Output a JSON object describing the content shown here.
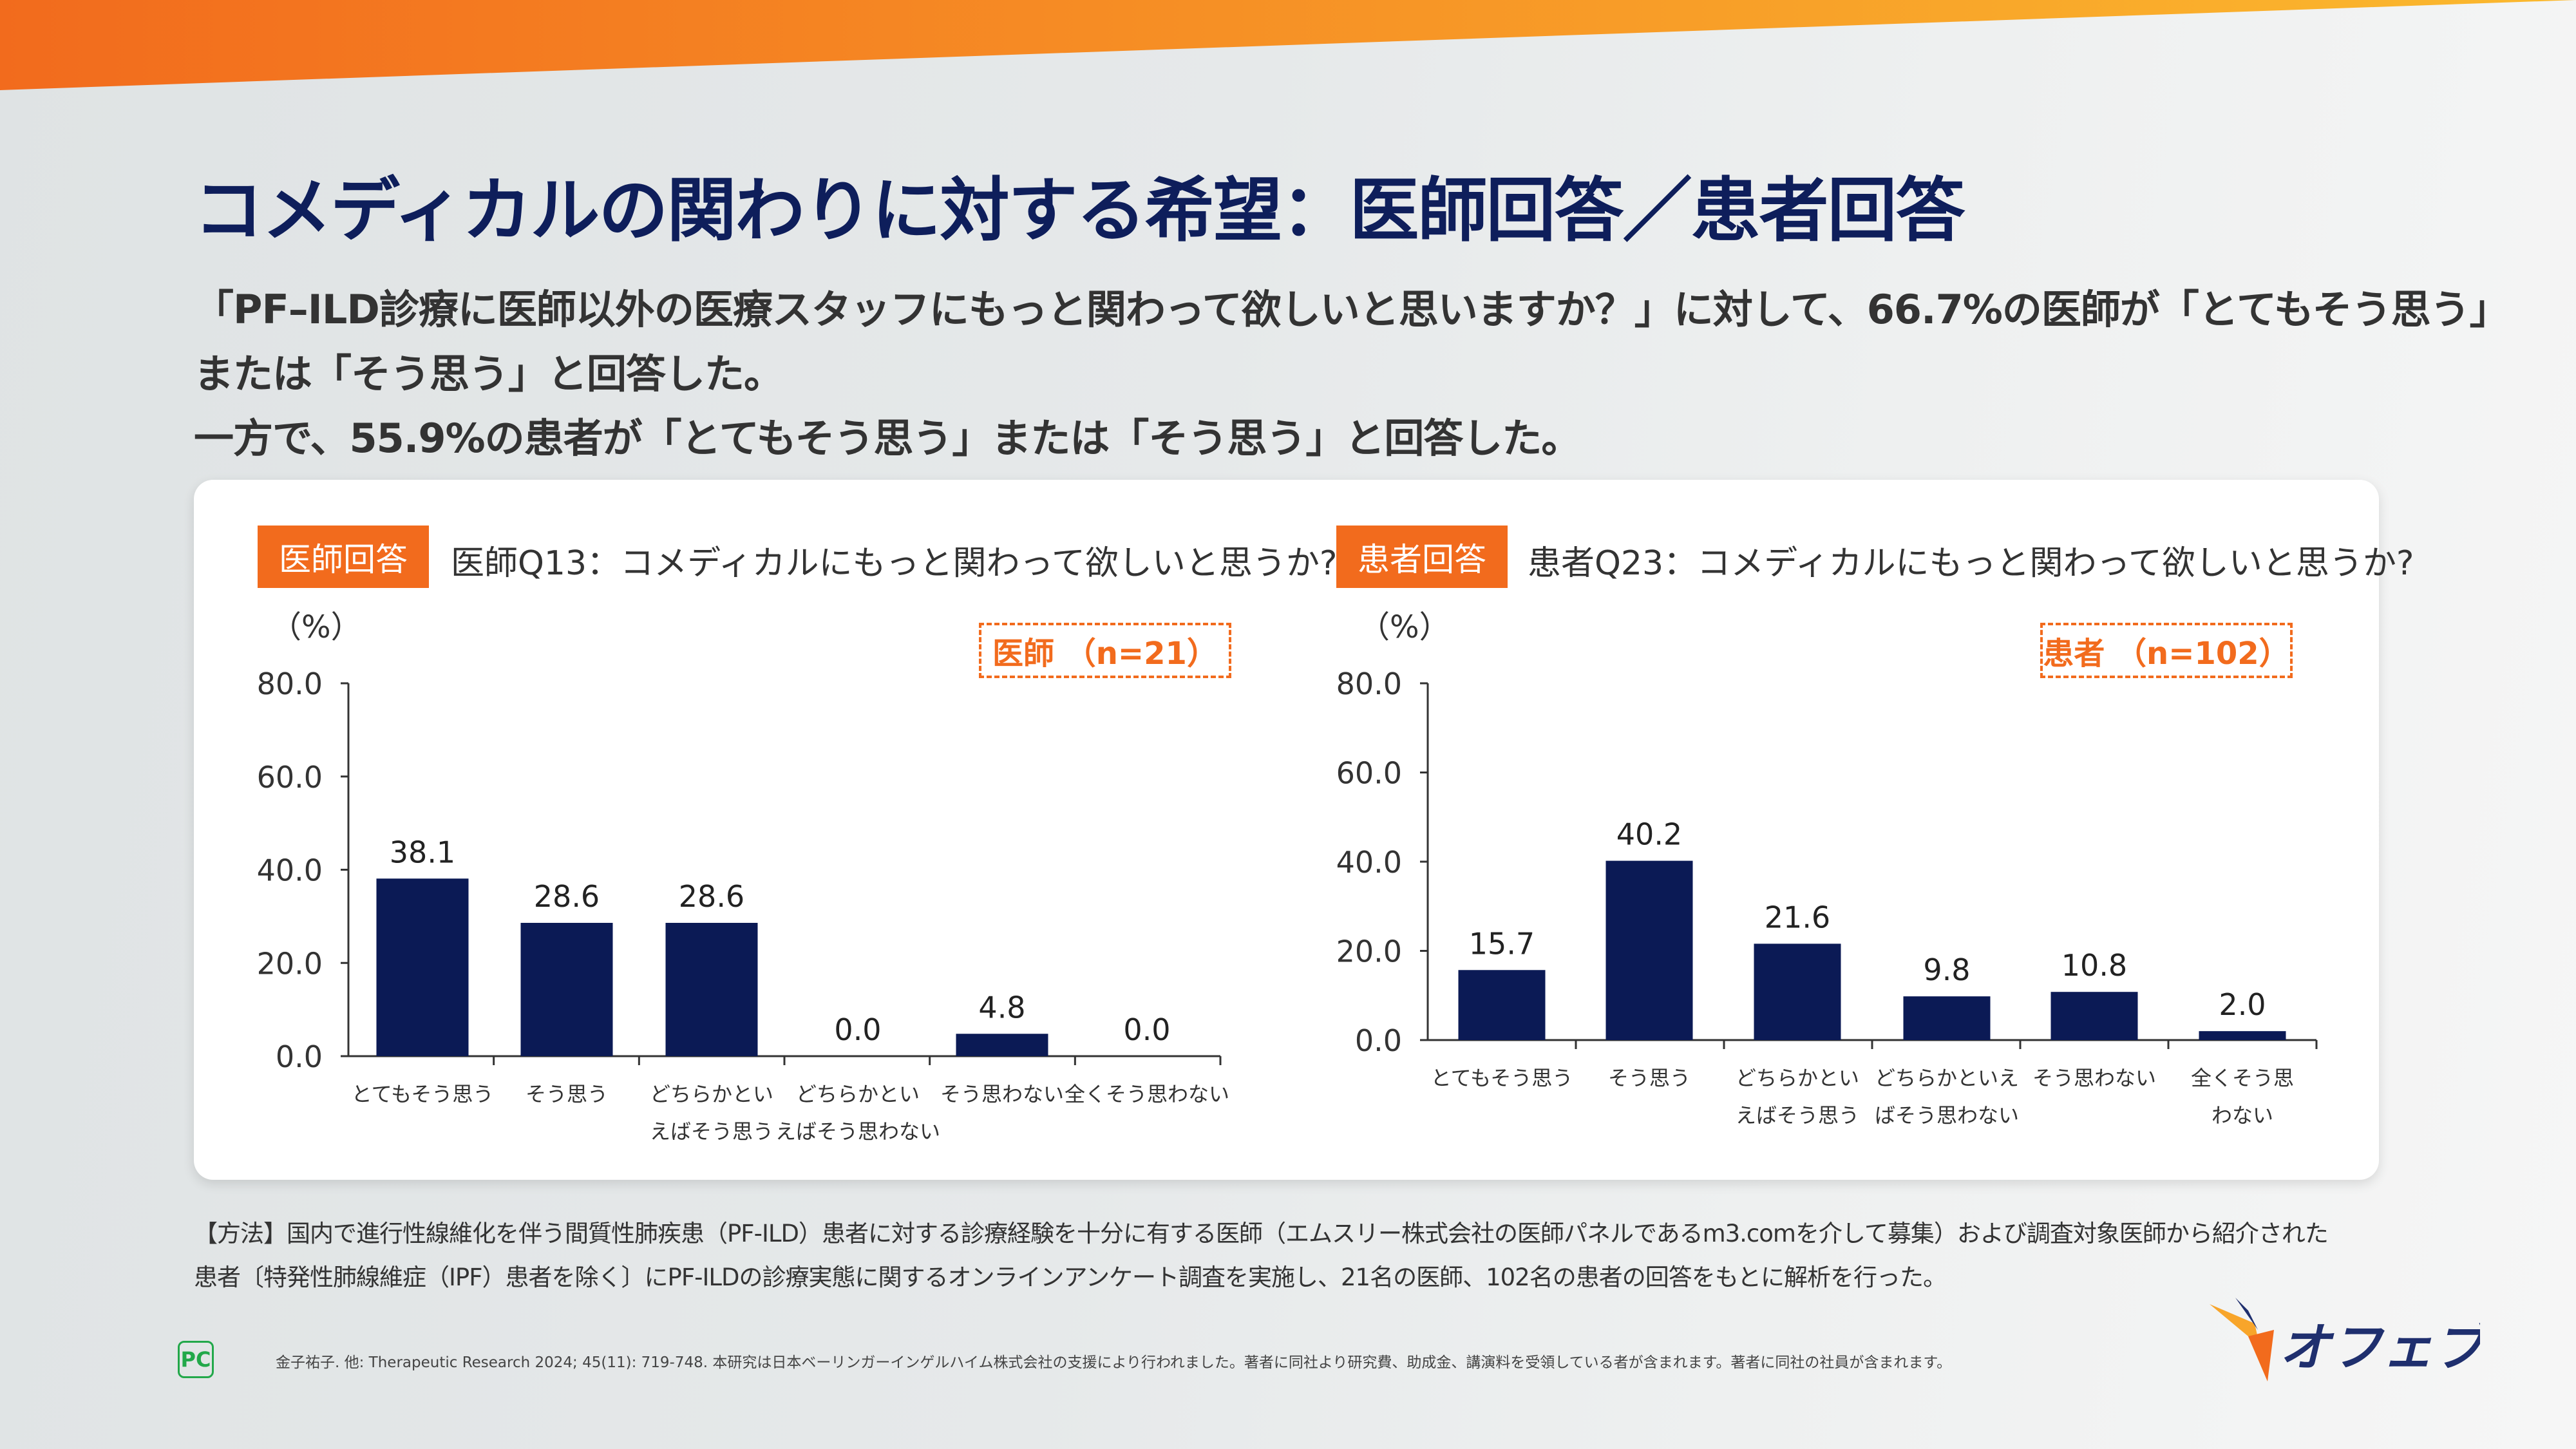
{
  "title": "コメディカルの関わりに対する希望：医師回答／患者回答",
  "summary": [
    "「PF–ILD診療に医師以外の医療スタッフにもっと関わって欲しいと思いますか？」に対して、66.7%の医師が「とてもそう思う」",
    "または「そう思う」と回答した。",
    "一方で、55.9%の患者が「とてもそう思う」または「そう思う」と回答した。"
  ],
  "colors": {
    "accent": "#f26b1d",
    "bar": "#0b1a55",
    "title": "#0e1e5b"
  },
  "chart_data": [
    {
      "type": "bar",
      "tag": "医師回答",
      "title": "医師Q13：コメディカルにもっと関わって欲しいと思うか?",
      "n_label": "医師 （n=21）",
      "ylabel": "（%）",
      "ylim": [
        0,
        80
      ],
      "yticks": [
        "0.0",
        "20.0",
        "40.0",
        "60.0",
        "80.0"
      ],
      "categories": [
        [
          "とてもそう思う"
        ],
        [
          "そう思う"
        ],
        [
          "どちらかとい",
          "えばそう思う"
        ],
        [
          "どちらかとい",
          "えばそう思わない"
        ],
        [
          "そう思わない"
        ],
        [
          "全くそう思わない"
        ]
      ],
      "values": [
        38.1,
        28.6,
        28.6,
        0.0,
        4.8,
        0.0
      ],
      "labels": [
        "38.1",
        "28.6",
        "28.6",
        "0.0",
        "4.8",
        "0.0"
      ]
    },
    {
      "type": "bar",
      "tag": "患者回答",
      "title": "患者Q23：コメディカルにもっと関わって欲しいと思うか?",
      "n_label": "患者 （n=102）",
      "ylabel": "（%）",
      "ylim": [
        0,
        80
      ],
      "yticks": [
        "0.0",
        "20.0",
        "40.0",
        "60.0",
        "80.0"
      ],
      "categories": [
        [
          "とてもそう思う"
        ],
        [
          "そう思う"
        ],
        [
          "どちらかとい",
          "えばそう思う"
        ],
        [
          "どちらかといえ",
          "ばそう思わない"
        ],
        [
          "そう思わない"
        ],
        [
          "全くそう思",
          "わない"
        ]
      ],
      "values": [
        15.7,
        40.2,
        21.6,
        9.8,
        10.8,
        2.0
      ],
      "labels": [
        "15.7",
        "40.2",
        "21.6",
        "9.8",
        "10.8",
        "2.0"
      ]
    }
  ],
  "method": [
    "【方法】国内で進行性線維化を伴う間質性肺疾患（PF-ILD）患者に対する診療経験を十分に有する医師（エムスリー株式会社の医師パネルであるm3.comを介して募集）および調査対象医師から紹介された",
    "患者〔特発性肺線維症（IPF）患者を除く〕にPF-ILDの診療実態に関するオンラインアンケート調査を実施し、21名の医師、102名の患者の回答をもとに解析を行った。"
  ],
  "footnote": "金子祐子. 他: Therapeutic Research 2024; 45(11): 719-748.  本研究は日本ベーリンガーインゲルハイム株式会社の支援により行われました。著者に同社より研究費、助成金、講演料を受領している者が含まれます。著者に同社の社員が含まれます。",
  "pc_mark": "PC",
  "logo": "オフェブ"
}
